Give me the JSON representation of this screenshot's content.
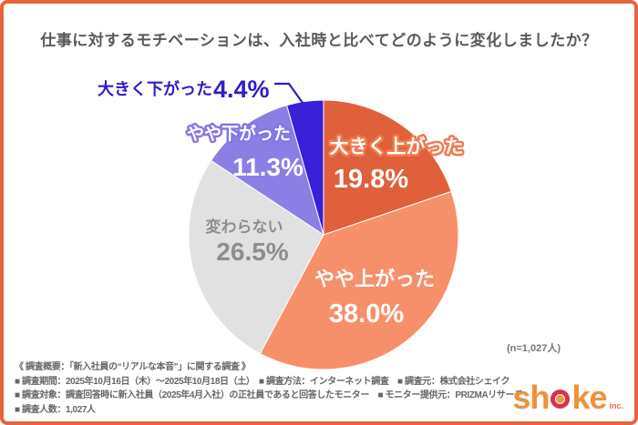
{
  "title": "仕事に対するモチベーションは、入社時と比べてどのように変化しましたか？",
  "chart_data": {
    "type": "pie",
    "title": "仕事に対するモチベーションは、入社時と比べてどのように変化しましたか？",
    "annotation": "(n=1,027人)",
    "start_angle": "12-oclock",
    "direction": "clockwise",
    "total": 100,
    "series": [
      {
        "label": "大きく上がった",
        "value": 19.8,
        "display": "19.8%",
        "color": "#E0603B"
      },
      {
        "label": "やや上がった",
        "value": 38.0,
        "display": "38.0%",
        "color": "#F6906B"
      },
      {
        "label": "変わらない",
        "value": 26.5,
        "display": "26.5%",
        "color": "#E1E1E1"
      },
      {
        "label": "やや下がった",
        "value": 11.3,
        "display": "11.3%",
        "color": "#8B7EE4"
      },
      {
        "label": "大きく下がった",
        "value": 4.4,
        "display": "4.4%",
        "color": "#3A1FD9"
      }
    ]
  },
  "footer": {
    "lines": [
      "《 調査概要：「新入社員の“リアルな本音”」に関する調査 》",
      "■ 調査期間：2025年10月16日（木）〜2025年10月18日（土）　■ 調査方法：インターネット調査　■ 調査元：株式会社シェイク",
      "■ 調査対象：調査回答時に新入社員（2025年4月入社）の正社員であると回答したモニター　■ モニター提供元：PRIZMAリサーチ",
      "■ 調査人数：1,027人"
    ]
  },
  "logo": {
    "text_before": "sh",
    "text_after": "ke",
    "suffix": "inc."
  },
  "colors": {
    "border": "#E8643C",
    "title_text": "#595959",
    "footer_text": "#666666",
    "n_label_text": "#777777",
    "external_label_blue": "#2B1EC9",
    "gray_label": "#8d8d8d",
    "name_outline_orange": "#F2794E",
    "name_outline_purple": "#8577E6"
  }
}
